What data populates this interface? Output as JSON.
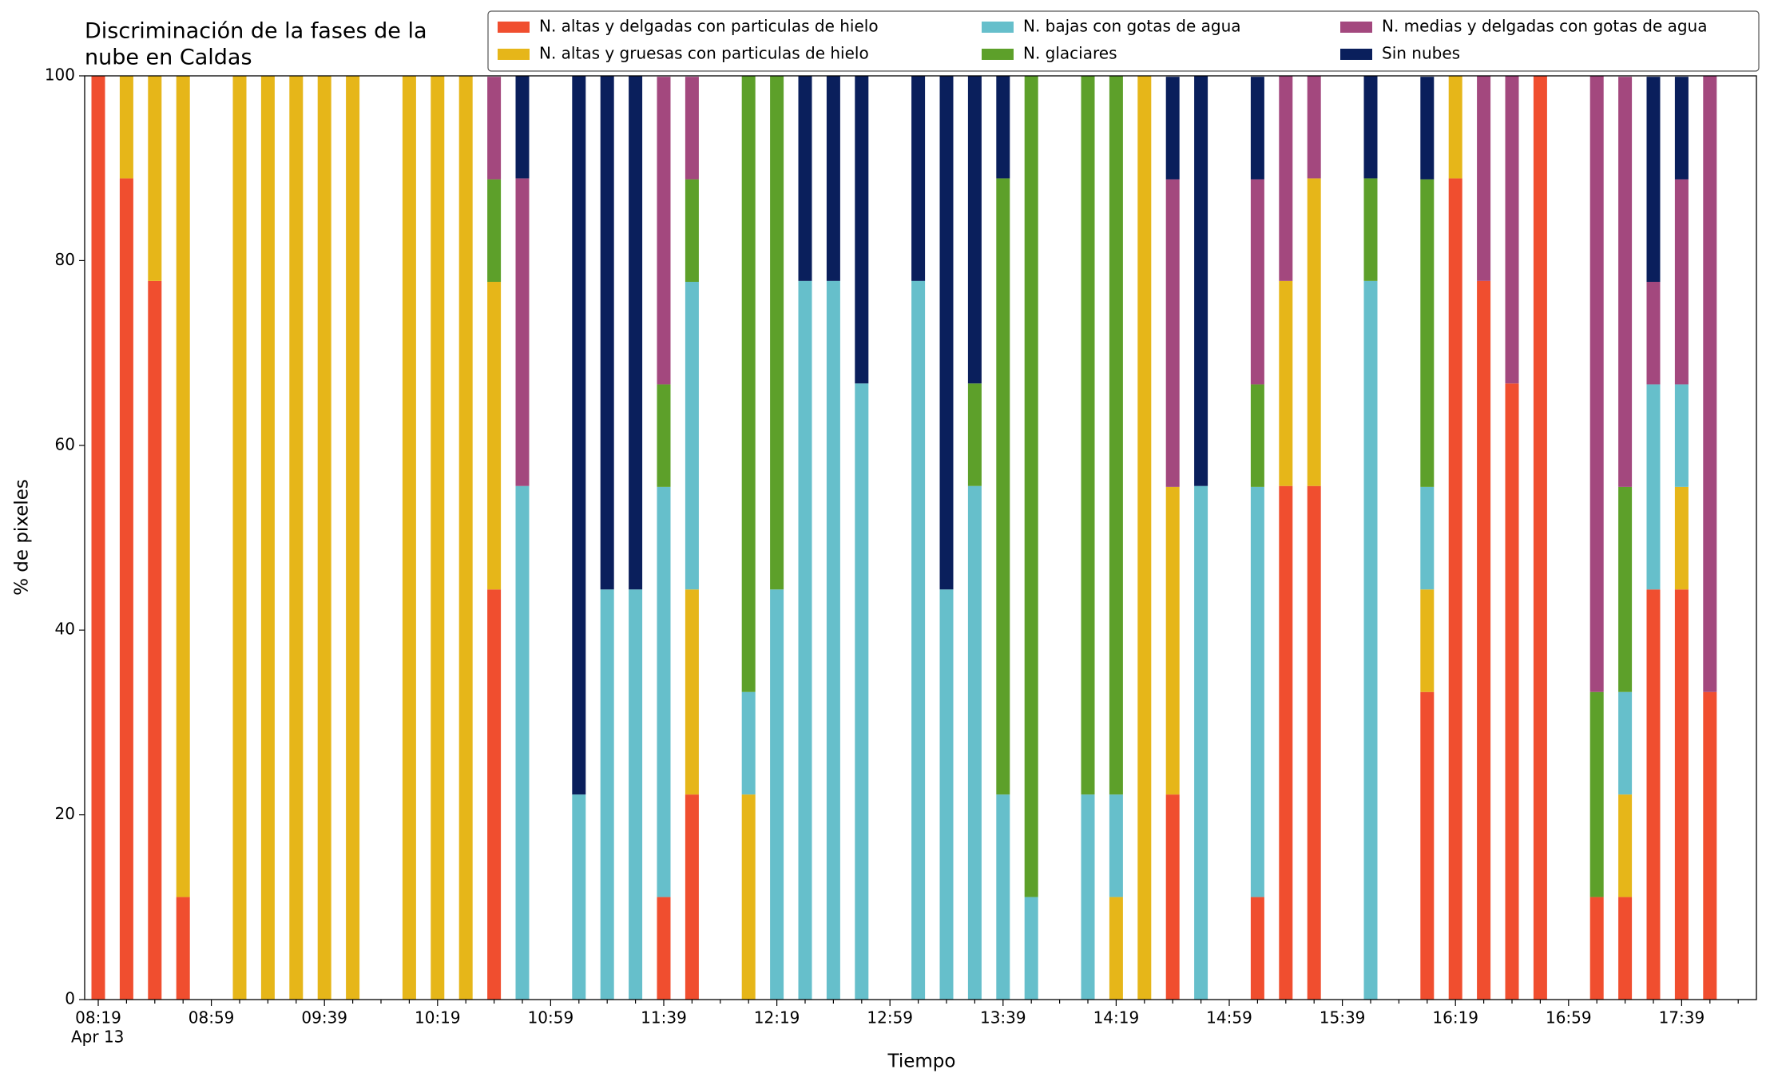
{
  "chart_data": {
    "type": "stacked_bar",
    "title": [
      "Discriminación de la fases de la",
      "nube en Caldas"
    ],
    "xlabel": "Tiempo",
    "ylabel": "% de pixeles",
    "x_date_label": "Apr 13",
    "categories": [
      "08:19",
      null,
      null,
      null,
      "08:59",
      null,
      null,
      null,
      "09:39",
      null,
      null,
      null,
      "10:19",
      null,
      null,
      null,
      "10:59",
      null,
      null,
      null,
      "11:39",
      null,
      null,
      null,
      "12:19",
      null,
      null,
      null,
      "12:59",
      null,
      null,
      null,
      "13:39",
      null,
      null,
      null,
      "14:19",
      null,
      null,
      null,
      "14:59",
      null,
      null,
      null,
      "15:39",
      null,
      null,
      null,
      "16:19",
      null,
      null,
      null,
      "16:59",
      null,
      null,
      null,
      "17:39",
      null,
      null
    ],
    "ylim": [
      0,
      100
    ],
    "yticks": [
      0,
      20,
      40,
      60,
      80,
      100
    ],
    "legend": "upper right",
    "series": [
      {
        "name": "N. altas y delgadas con particulas de hielo",
        "color": "#f04e2f",
        "values": [
          100,
          88.9,
          77.8,
          11.1,
          null,
          0,
          0,
          0,
          0,
          0,
          null,
          0,
          0,
          0,
          44.4,
          0,
          null,
          0,
          0,
          0,
          11.1,
          22.2,
          null,
          0,
          0,
          0,
          0,
          0,
          null,
          0,
          0,
          0,
          0,
          0,
          null,
          0,
          0,
          0,
          22.2,
          0,
          null,
          11.1,
          55.6,
          55.6,
          null,
          0,
          null,
          33.3,
          88.9,
          77.8,
          66.7,
          100,
          null,
          11.1,
          11.1,
          44.4,
          44.4,
          33.3,
          null
        ]
      },
      {
        "name": "N. altas y gruesas con particulas de hielo",
        "color": "#e6b619",
        "values": [
          0,
          11.1,
          22.2,
          88.9,
          null,
          100,
          100,
          100,
          100,
          100,
          null,
          100,
          100,
          100,
          33.3,
          0,
          null,
          0,
          0,
          0,
          0,
          22.2,
          null,
          22.2,
          0,
          0,
          0,
          0,
          null,
          0,
          0,
          0,
          0,
          0,
          null,
          0,
          11.1,
          100,
          33.3,
          0,
          null,
          0,
          22.2,
          33.3,
          null,
          0,
          null,
          11.1,
          11.1,
          0,
          0,
          0,
          null,
          0,
          11.1,
          0,
          11.1,
          0,
          null
        ]
      },
      {
        "name": "N. bajas con gotas de agua",
        "color": "#66bfcb",
        "values": [
          0,
          0,
          0,
          0,
          null,
          0,
          0,
          0,
          0,
          0,
          null,
          0,
          0,
          0,
          0,
          55.6,
          null,
          22.2,
          44.4,
          44.4,
          44.4,
          33.3,
          null,
          11.1,
          44.4,
          77.8,
          77.8,
          66.7,
          null,
          77.8,
          44.4,
          55.6,
          22.2,
          11.1,
          null,
          22.2,
          11.1,
          0,
          0,
          55.6,
          null,
          44.4,
          0,
          0,
          null,
          77.8,
          null,
          11.1,
          0,
          0,
          0,
          0,
          null,
          0,
          11.1,
          22.2,
          11.1,
          0,
          null
        ]
      },
      {
        "name": "N. glaciares",
        "color": "#5da02a",
        "values": [
          0,
          0,
          0,
          0,
          null,
          0,
          0,
          0,
          0,
          0,
          null,
          0,
          0,
          0,
          11.1,
          0,
          null,
          0,
          0,
          0,
          11.1,
          11.1,
          null,
          66.7,
          55.6,
          0,
          0,
          0,
          null,
          0,
          0,
          11.1,
          66.7,
          88.9,
          null,
          77.8,
          77.8,
          0,
          0,
          0,
          null,
          11.1,
          0,
          0,
          null,
          11.1,
          null,
          33.3,
          0,
          0,
          0,
          0,
          null,
          22.2,
          22.2,
          0,
          0,
          0,
          null
        ]
      },
      {
        "name": "N. medias y delgadas con gotas de agua",
        "color": "#a3487e",
        "values": [
          0,
          0,
          0,
          0,
          null,
          0,
          0,
          0,
          0,
          0,
          null,
          0,
          0,
          0,
          11.1,
          33.3,
          null,
          0,
          0,
          0,
          33.3,
          11.1,
          null,
          0,
          0,
          0,
          0,
          0,
          null,
          0,
          0,
          0,
          0,
          0,
          null,
          0,
          0,
          0,
          33.3,
          0,
          null,
          22.2,
          22.2,
          11.1,
          null,
          0,
          null,
          0,
          0,
          22.2,
          33.3,
          0,
          null,
          66.7,
          44.4,
          11.1,
          22.2,
          66.7,
          null
        ]
      },
      {
        "name": "Sin nubes",
        "color": "#0a1f5c",
        "values": [
          0,
          0,
          0,
          0,
          null,
          0,
          0,
          0,
          0,
          0,
          null,
          0,
          0,
          0,
          0,
          11.1,
          null,
          77.8,
          55.6,
          55.6,
          0,
          0,
          null,
          0,
          0,
          22.2,
          22.2,
          33.3,
          null,
          22.2,
          55.6,
          33.3,
          11.1,
          0,
          null,
          0,
          0,
          0,
          11.1,
          44.4,
          null,
          11.1,
          0,
          0,
          null,
          11.1,
          null,
          11.1,
          0,
          0,
          0,
          0,
          null,
          0,
          0,
          22.2,
          11.1,
          0,
          null
        ]
      }
    ]
  }
}
